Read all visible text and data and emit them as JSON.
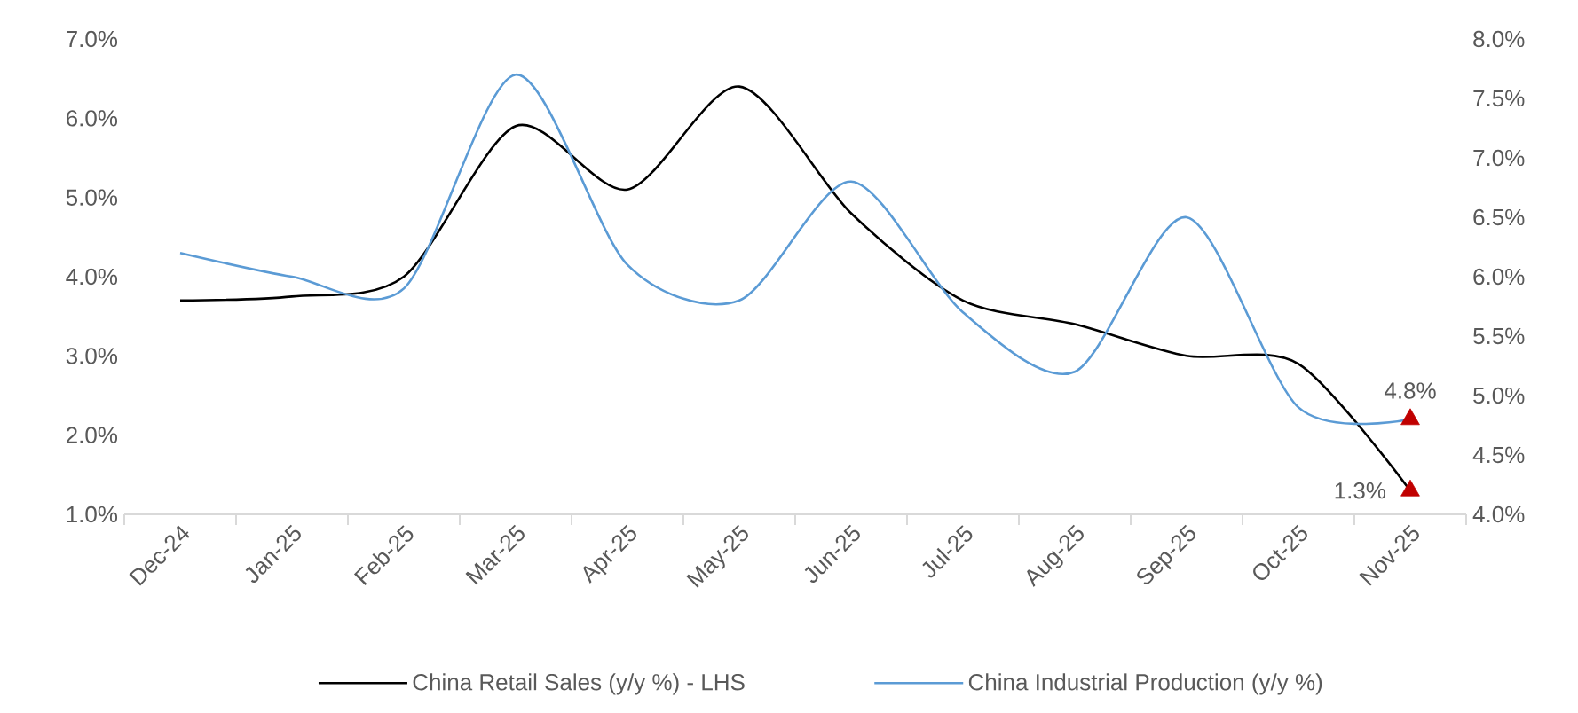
{
  "chart_data": {
    "type": "line",
    "categories": [
      "Dec-24",
      "Jan-25",
      "Feb-25",
      "Mar-25",
      "Apr-25",
      "May-25",
      "Jun-25",
      "Jul-25",
      "Aug-25",
      "Sep-25",
      "Oct-25",
      "Nov-25"
    ],
    "series": [
      {
        "name": "China Retail Sales (y/y %) - LHS",
        "color": "#000000",
        "values": [
          3.7,
          3.75,
          4.0,
          5.9,
          5.1,
          6.4,
          4.8,
          3.7,
          3.4,
          3.0,
          2.9,
          1.3
        ],
        "value_labels": [
          null,
          null,
          null,
          null,
          null,
          null,
          null,
          null,
          null,
          null,
          null,
          "1.3%"
        ]
      },
      {
        "name": "China Industrial Production (y/y %)",
        "color": "#5b9bd5",
        "axis": "y2",
        "values": [
          6.2,
          6.0,
          5.9,
          7.7,
          6.1,
          5.8,
          6.8,
          5.7,
          5.2,
          6.5,
          4.9,
          4.8
        ],
        "value_labels": [
          null,
          null,
          null,
          null,
          null,
          null,
          null,
          null,
          null,
          null,
          null,
          "4.8%"
        ]
      }
    ],
    "ylim": [
      1.0,
      7.0
    ],
    "yticks": [
      {
        "value": 1.0,
        "label": "1.0%"
      },
      {
        "value": 2.0,
        "label": "2.0%"
      },
      {
        "value": 3.0,
        "label": "3.0%"
      },
      {
        "value": 4.0,
        "label": "4.0%"
      },
      {
        "value": 5.0,
        "label": "5.0%"
      },
      {
        "value": 6.0,
        "label": "6.0%"
      },
      {
        "value": 7.0,
        "label": "7.0%"
      }
    ],
    "y2lim": [
      4.0,
      8.0
    ],
    "y2ticks": [
      {
        "value": 4.0,
        "label": "4.0%"
      },
      {
        "value": 4.5,
        "label": "4.5%"
      },
      {
        "value": 5.0,
        "label": "5.0%"
      },
      {
        "value": 5.5,
        "label": "5.5%"
      },
      {
        "value": 6.0,
        "label": "6.0%"
      },
      {
        "value": 6.5,
        "label": "6.5%"
      },
      {
        "value": 7.0,
        "label": "7.0%"
      },
      {
        "value": 7.5,
        "label": "7.5%"
      },
      {
        "value": 8.0,
        "label": "8.0%"
      }
    ],
    "legend": "bottom"
  }
}
